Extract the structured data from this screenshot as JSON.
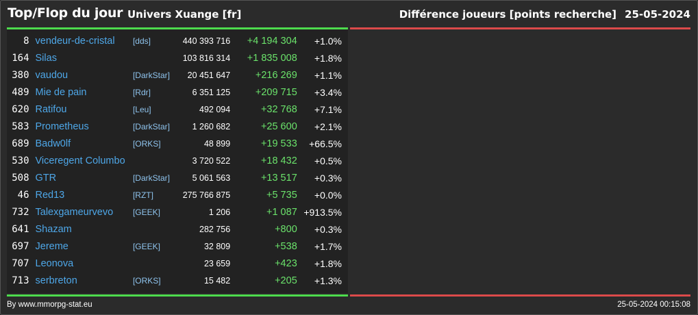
{
  "header": {
    "title": "Top/Flop du jour",
    "universe": "Univers Xuange [fr]",
    "metric": "Différence joueurs [points recherche]",
    "date": "25-05-2024"
  },
  "colors": {
    "top_accent": "#4ddc4d",
    "flop_accent": "#dc4a4a",
    "name_link": "#4ea7e8",
    "diff_positive": "#6be36b"
  },
  "top_rows": [
    {
      "rank": "8",
      "name": "vendeur-de-cristal",
      "alliance": "[dds]",
      "points": "440 393 716",
      "diff": "+4 194 304",
      "pct": "+1.0%"
    },
    {
      "rank": "164",
      "name": "Silas",
      "alliance": "",
      "points": "103 816 314",
      "diff": "+1 835 008",
      "pct": "+1.8%"
    },
    {
      "rank": "380",
      "name": "vaudou",
      "alliance": "[DarkStar]",
      "points": "20 451 647",
      "diff": "+216 269",
      "pct": "+1.1%"
    },
    {
      "rank": "489",
      "name": "Mie de pain",
      "alliance": "[Rdr]",
      "points": "6 351 125",
      "diff": "+209 715",
      "pct": "+3.4%"
    },
    {
      "rank": "620",
      "name": "Ratifou",
      "alliance": "[Leu]",
      "points": "492 094",
      "diff": "+32 768",
      "pct": "+7.1%"
    },
    {
      "rank": "583",
      "name": "Prometheus",
      "alliance": "[DarkStar]",
      "points": "1 260 682",
      "diff": "+25 600",
      "pct": "+2.1%"
    },
    {
      "rank": "689",
      "name": "Badw0lf",
      "alliance": "[ORKS]",
      "points": "48 899",
      "diff": "+19 533",
      "pct": "+66.5%"
    },
    {
      "rank": "530",
      "name": "Viceregent Columbo",
      "alliance": "",
      "points": "3 720 522",
      "diff": "+18 432",
      "pct": "+0.5%"
    },
    {
      "rank": "508",
      "name": "GTR",
      "alliance": "[DarkStar]",
      "points": "5 061 563",
      "diff": "+13 517",
      "pct": "+0.3%"
    },
    {
      "rank": "46",
      "name": "Red13",
      "alliance": "[RZT]",
      "points": "275 766 875",
      "diff": "+5 735",
      "pct": "+0.0%"
    },
    {
      "rank": "732",
      "name": "Talexgameurvevo",
      "alliance": "[GEEK]",
      "points": "1 206",
      "diff": "+1 087",
      "pct": "+913.5%"
    },
    {
      "rank": "641",
      "name": "Shazam",
      "alliance": "",
      "points": "282 756",
      "diff": "+800",
      "pct": "+0.3%"
    },
    {
      "rank": "697",
      "name": "Jereme",
      "alliance": "[GEEK]",
      "points": "32 809",
      "diff": "+538",
      "pct": "+1.7%"
    },
    {
      "rank": "707",
      "name": "Leonova",
      "alliance": "",
      "points": "23 659",
      "diff": "+423",
      "pct": "+1.8%"
    },
    {
      "rank": "713",
      "name": "serbreton",
      "alliance": "[ORKS]",
      "points": "15 482",
      "diff": "+205",
      "pct": "+1.3%"
    }
  ],
  "footer": {
    "credit": "By www.mmorpg-stat.eu",
    "timestamp": "25-05-2024 00:15:08"
  }
}
